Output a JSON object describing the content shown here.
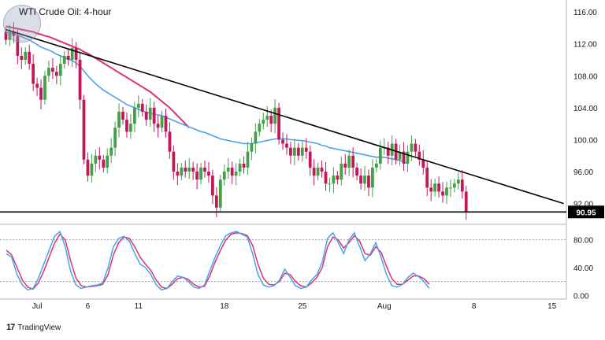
{
  "chart_title": "WTI Crude Oil: 4-hour",
  "footer_brand": "TradingView",
  "price_label": "90.95",
  "colors": {
    "up": "#26a69a",
    "up_body": "#43a047",
    "down": "#c2185b",
    "ma_fast": "#4aa3e8",
    "ma_slow": "#e0336e",
    "trendline": "#000000",
    "stoch_k": "#4aa3e8",
    "stoch_d": "#e0336e"
  },
  "chart_data": [
    {
      "type": "candlestick",
      "title": "WTI Crude Oil: 4-hour",
      "ylim": [
        89.5,
        117
      ],
      "yticks": [
        "116.00",
        "112.00",
        "108.00",
        "104.00",
        "100.00",
        "96.00",
        "92.00"
      ],
      "ytick_values": [
        116,
        112,
        108,
        104,
        100,
        96,
        92
      ],
      "xticks": [
        "Jul",
        "6",
        "11",
        "18",
        "25",
        "Aug",
        "8",
        "15"
      ],
      "xtick_index": [
        8,
        21,
        34,
        56,
        76,
        97,
        120,
        140
      ],
      "n_slots": 144,
      "closes": [
        112.5,
        113.5,
        113.0,
        110.5,
        110.0,
        111.0,
        109.5,
        107.0,
        106.5,
        105.0,
        108.0,
        109.0,
        108.5,
        108.0,
        109.5,
        110.5,
        110.0,
        111.5,
        110.0,
        105.0,
        97.5,
        95.5,
        97.0,
        98.0,
        97.5,
        96.5,
        98.0,
        99.0,
        101.5,
        103.5,
        102.5,
        101.0,
        102.0,
        104.0,
        104.5,
        103.5,
        102.5,
        104.0,
        102.0,
        101.5,
        103.0,
        101.0,
        98.5,
        96.0,
        95.5,
        96.5,
        96.0,
        96.5,
        96.0,
        95.0,
        96.5,
        96.0,
        95.5,
        93.0,
        91.5,
        95.0,
        96.0,
        96.5,
        95.5,
        96.0,
        97.0,
        96.5,
        98.5,
        99.5,
        101.0,
        102.0,
        102.5,
        103.0,
        102.0,
        104.0,
        100.0,
        99.5,
        99.0,
        98.0,
        99.0,
        98.0,
        99.0,
        98.5,
        96.5,
        95.5,
        96.5,
        96.0,
        94.5,
        94.5,
        95.5,
        95.0,
        97.0,
        96.5,
        98.0,
        96.5,
        95.5,
        94.5,
        95.5,
        94.0,
        96.5,
        97.0,
        99.0,
        99.0,
        98.0,
        99.5,
        97.5,
        98.5,
        97.0,
        98.5,
        99.5,
        98.5,
        97.5,
        96.5,
        94.0,
        93.5,
        94.5,
        93.5,
        93.0,
        94.0,
        94.0,
        94.5,
        95.0,
        93.5,
        91.0
      ],
      "opens_first": 113.5,
      "series": [
        {
          "name": "",
          "style": "MA fast",
          "values": [
            113.5,
            113.4,
            113.3,
            113.1,
            112.9,
            112.7,
            112.5,
            112.2,
            111.9,
            111.6,
            111.4,
            111.2,
            111.0,
            110.7,
            110.5,
            110.3,
            110.1,
            109.9,
            109.6,
            109.2,
            108.6,
            108.0,
            107.5,
            107.0,
            106.6,
            106.2,
            105.9,
            105.6,
            105.3,
            105.0,
            104.7,
            104.4,
            104.2,
            104.0,
            103.8,
            103.6,
            103.4,
            103.3,
            103.2,
            103.1,
            103.0,
            102.8,
            102.6,
            102.4,
            102.2,
            102.0,
            101.8,
            101.6,
            101.4,
            101.2,
            101.0,
            100.9,
            100.7,
            100.5,
            100.3,
            100.1,
            100.0,
            99.9,
            99.8,
            99.7,
            99.6,
            99.5,
            99.5,
            99.5,
            99.6,
            99.7,
            99.8,
            99.9,
            100.0,
            100.1,
            100.1,
            100.1,
            100.1,
            100.0,
            100.0,
            99.9,
            99.9,
            99.8,
            99.7,
            99.6,
            99.5,
            99.3,
            99.2,
            99.0,
            98.9,
            98.8,
            98.7,
            98.6,
            98.5,
            98.4,
            98.3,
            98.2,
            98.1,
            98.0,
            97.9,
            97.8,
            97.8,
            97.8,
            97.7,
            97.6,
            97.5,
            97.4,
            97.2,
            97.0
          ]
        },
        {
          "name": "",
          "style": "MA slow",
          "values": [
            114.2,
            114.1,
            114.0,
            113.9,
            113.8,
            113.7,
            113.6,
            113.5,
            113.3,
            113.2,
            113.0,
            112.9,
            112.7,
            112.5,
            112.3,
            112.1,
            111.9,
            111.7,
            111.5,
            111.3,
            111.0,
            110.8,
            110.5,
            110.2,
            109.9,
            109.6,
            109.3,
            109.0,
            108.7,
            108.4,
            108.1,
            107.8,
            107.5,
            107.2,
            106.9,
            106.6,
            106.3,
            106.0,
            105.6,
            105.2,
            104.8,
            104.4,
            104.0,
            103.5,
            103.0,
            102.5,
            102.0,
            101.5
          ]
        }
      ],
      "trendline": {
        "from": [
          0,
          113.8
        ],
        "to": [
          143,
          92.0
        ]
      },
      "support_level": 90.95
    },
    {
      "type": "line",
      "title": "",
      "ylim": [
        -3,
        100
      ],
      "yticks": [
        "80.00",
        "40.00",
        "0.00"
      ],
      "ytick_values": [
        80,
        40,
        0
      ],
      "hlines": [
        80,
        20
      ],
      "series": [
        {
          "name": "",
          "style": "%K",
          "values": [
            60,
            55,
            30,
            15,
            8,
            10,
            25,
            45,
            65,
            85,
            92,
            70,
            35,
            15,
            10,
            12,
            14,
            15,
            18,
            40,
            70,
            82,
            85,
            78,
            60,
            45,
            40,
            30,
            15,
            8,
            10,
            20,
            28,
            26,
            20,
            12,
            10,
            15,
            35,
            55,
            72,
            86,
            90,
            92,
            88,
            84,
            60,
            30,
            15,
            12,
            14,
            22,
            38,
            26,
            14,
            10,
            12,
            22,
            30,
            48,
            82,
            90,
            76,
            60,
            80,
            90,
            70,
            50,
            60,
            76,
            55,
            30,
            14,
            12,
            16,
            26,
            32,
            27,
            20,
            10
          ]
        },
        {
          "name": "",
          "style": "%D",
          "values": [
            65,
            58,
            40,
            22,
            12,
            9,
            18,
            35,
            55,
            75,
            88,
            80,
            50,
            25,
            14,
            12,
            13,
            14,
            16,
            30,
            58,
            76,
            84,
            82,
            70,
            55,
            45,
            36,
            22,
            12,
            10,
            16,
            24,
            26,
            23,
            16,
            12,
            13,
            28,
            48,
            65,
            80,
            88,
            90,
            89,
            86,
            72,
            45,
            25,
            16,
            15,
            20,
            32,
            30,
            20,
            14,
            12,
            18,
            26,
            40,
            70,
            84,
            80,
            68,
            76,
            86,
            78,
            60,
            58,
            70,
            62,
            42,
            24,
            16,
            16,
            22,
            28,
            28,
            24,
            16
          ]
        }
      ]
    }
  ]
}
